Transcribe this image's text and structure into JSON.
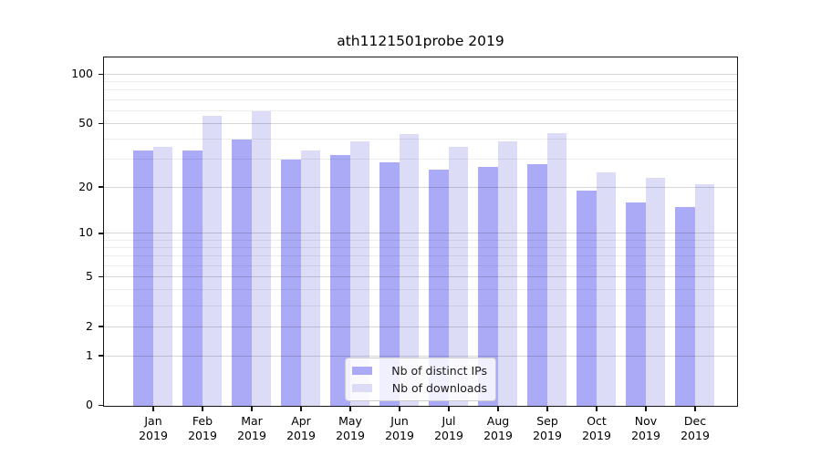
{
  "chart_data": {
    "type": "bar",
    "title": "ath1121501probe 2019",
    "categories": [
      "Jan",
      "Feb",
      "Mar",
      "Apr",
      "May",
      "Jun",
      "Jul",
      "Aug",
      "Sep",
      "Oct",
      "Nov",
      "Dec"
    ],
    "category_year": "2019",
    "series": [
      {
        "name": "Nb of distinct IPs",
        "color": "#aaaaf7",
        "values": [
          34,
          34,
          40,
          30,
          32,
          29,
          26,
          27,
          28,
          19,
          16,
          15
        ]
      },
      {
        "name": "Nb of downloads",
        "color": "#dcdcf7",
        "values": [
          36,
          56,
          60,
          34,
          39,
          43,
          36,
          39,
          44,
          25,
          23,
          21
        ]
      }
    ],
    "xlabel": "",
    "ylabel": "",
    "yscale": "log1p",
    "ylim": [
      0,
      126
    ],
    "yticks_labeled": [
      0,
      1,
      2,
      5,
      10,
      20,
      50,
      100
    ],
    "yticks_minor": [
      3,
      4,
      6,
      7,
      8,
      9,
      30,
      40,
      60,
      70,
      80,
      90
    ],
    "grid": "on",
    "legend_position": "lower-center-inside"
  },
  "colors": {
    "grid_major": "rgba(0,0,0,0.16)",
    "grid_minor": "rgba(0,0,0,0.07)",
    "spine": "#151515",
    "legend_border": "#cccccc",
    "legend_background": "rgba(255,255,255,0.82)",
    "text": "#000000"
  }
}
